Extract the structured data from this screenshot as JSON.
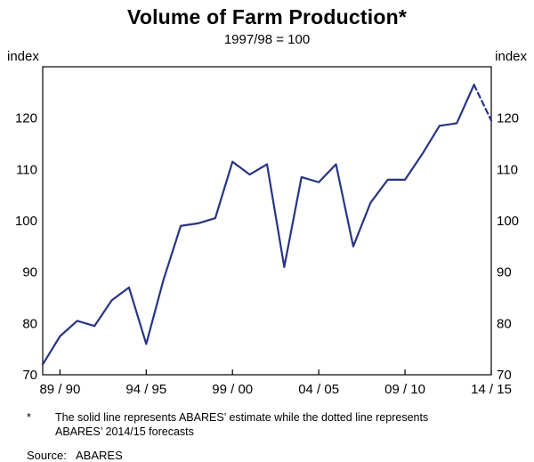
{
  "title": "Volume of Farm Production*",
  "subtitle": "1997/98 = 100",
  "line_color": "#283583",
  "footnote": {
    "marker": "*",
    "text": "The solid line represents ABARES’ estimate while the dotted line represents ABARES’ 2014/15 forecasts"
  },
  "source": {
    "label": "Source:",
    "value": "ABARES"
  },
  "chart_data": {
    "type": "line",
    "title": "Volume of Farm Production*",
    "subtitle": "1997/98 = 100",
    "ylabel_left": "index",
    "ylabel_right": "index",
    "ylim": [
      70,
      130
    ],
    "yticks": [
      70,
      80,
      90,
      100,
      110,
      120
    ],
    "grid": false,
    "x": [
      "88/89",
      "89/90",
      "90/91",
      "91/92",
      "92/93",
      "93/94",
      "94/95",
      "95/96",
      "96/97",
      "97/98",
      "98/99",
      "99/00",
      "00/01",
      "01/02",
      "02/03",
      "03/04",
      "04/05",
      "05/06",
      "06/07",
      "07/08",
      "08/09",
      "09/10",
      "10/11",
      "11/12",
      "12/13",
      "13/14",
      "14/15"
    ],
    "xtick_indices": [
      1,
      6,
      11,
      16,
      21,
      26
    ],
    "xtick_labels": [
      "89 / 90",
      "94 / 95",
      "99 / 00",
      "04 / 05",
      "09 / 10",
      "14 / 15"
    ],
    "series": [
      {
        "name": "ABARES estimate",
        "style": "solid",
        "x_start_index": 0,
        "values": [
          72,
          77.5,
          80.5,
          79.5,
          84.5,
          87,
          76,
          88.5,
          99,
          99.5,
          100.5,
          111.5,
          109,
          111,
          91,
          108.5,
          107.5,
          111,
          95,
          103.5,
          108,
          108,
          113,
          118.5,
          119,
          126.5
        ]
      },
      {
        "name": "ABARES 2014/15 forecast",
        "style": "dashed",
        "x_start_index": 25,
        "values": [
          126.5,
          119.5
        ]
      }
    ]
  }
}
